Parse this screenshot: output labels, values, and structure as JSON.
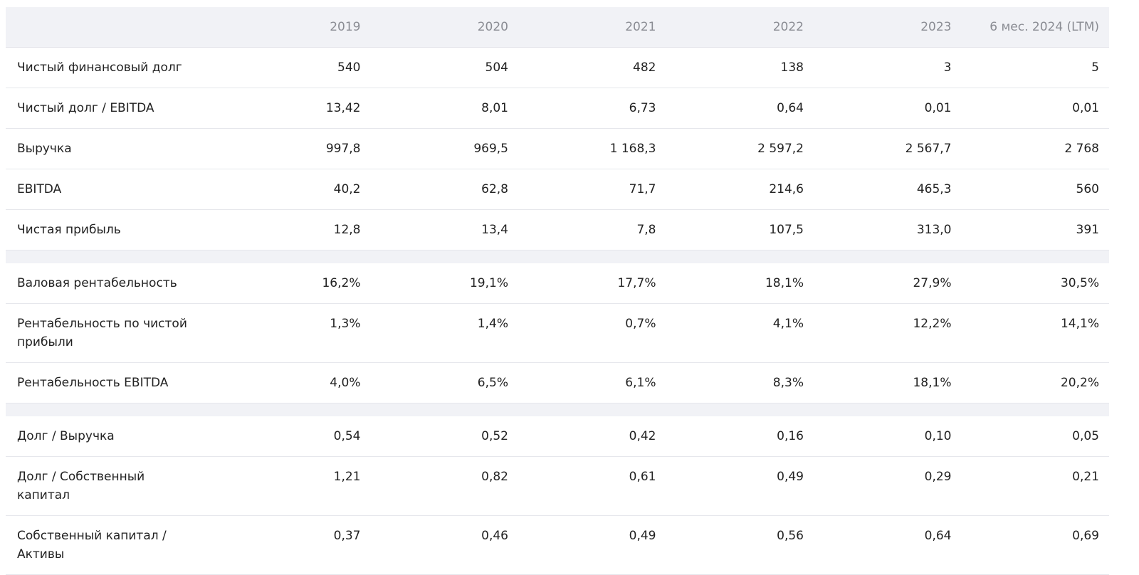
{
  "table": {
    "header": [
      "2019",
      "2020",
      "2021",
      "2022",
      "2023",
      "6 мес. 2024 (LTM)"
    ],
    "groups": [
      [
        {
          "label": "Чистый финансовый долг",
          "values": [
            "540",
            "504",
            "482",
            "138",
            "3",
            "5"
          ]
        },
        {
          "label": "Чистый долг / EBITDA",
          "values": [
            "13,42",
            "8,01",
            "6,73",
            "0,64",
            "0,01",
            "0,01"
          ]
        },
        {
          "label": "Выручка",
          "values": [
            "997,8",
            "969,5",
            "1 168,3",
            "2 597,2",
            "2 567,7",
            "2 768"
          ]
        },
        {
          "label": "EBITDA",
          "values": [
            "40,2",
            "62,8",
            "71,7",
            "214,6",
            "465,3",
            "560"
          ]
        },
        {
          "label": "Чистая прибыль",
          "values": [
            "12,8",
            "13,4",
            "7,8",
            "107,5",
            "313,0",
            "391"
          ]
        }
      ],
      [
        {
          "label": "Валовая рентабельность",
          "values": [
            "16,2%",
            "19,1%",
            "17,7%",
            "18,1%",
            "27,9%",
            "30,5%"
          ]
        },
        {
          "label": "Рентабельность по чистой прибыли",
          "values": [
            "1,3%",
            "1,4%",
            "0,7%",
            "4,1%",
            "12,2%",
            "14,1%"
          ]
        },
        {
          "label": "Рентабельность EBITDA",
          "values": [
            "4,0%",
            "6,5%",
            "6,1%",
            "8,3%",
            "18,1%",
            "20,2%"
          ]
        }
      ],
      [
        {
          "label": "Долг / Выручка",
          "values": [
            "0,54",
            "0,52",
            "0,42",
            "0,16",
            "0,10",
            "0,05"
          ]
        },
        {
          "label": "Долг / Собственный капитал",
          "values": [
            "1,21",
            "0,82",
            "0,61",
            "0,49",
            "0,29",
            "0,21"
          ]
        },
        {
          "label": "Собственный капитал / Активы",
          "values": [
            "0,37",
            "0,46",
            "0,49",
            "0,56",
            "0,64",
            "0,69"
          ]
        }
      ]
    ]
  }
}
